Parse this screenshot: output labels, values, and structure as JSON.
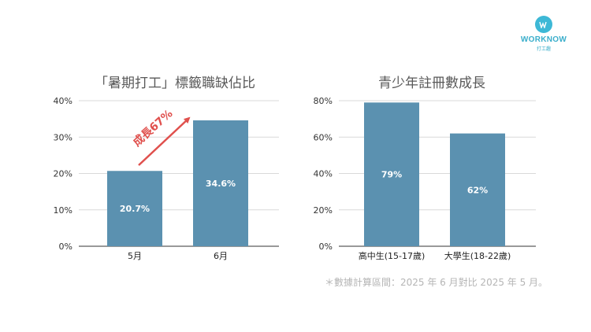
{
  "brand": {
    "name": "WORKNOW",
    "sub": "打工趣",
    "accent": "#3db8d6"
  },
  "chart_data": [
    {
      "type": "bar",
      "title": "「暑期打工」標籤職缺佔比",
      "categories": [
        "5月",
        "6月"
      ],
      "values": [
        20.7,
        34.6
      ],
      "value_labels": [
        "20.7%",
        "34.6%"
      ],
      "yticks": [
        "0%",
        "10%",
        "20%",
        "30%",
        "40%"
      ],
      "ylim": [
        0,
        40
      ],
      "bar_color": "#5b91b0",
      "annotation": {
        "text": "成長67%",
        "color": "#e0504d"
      },
      "grid": true
    },
    {
      "type": "bar",
      "title": "青少年註冊數成長",
      "categories": [
        "高中生(15-17歲)",
        "大學生(18-22歲)"
      ],
      "values": [
        79,
        62
      ],
      "value_labels": [
        "79%",
        "62%"
      ],
      "yticks": [
        "0%",
        "20%",
        "40%",
        "60%",
        "80%"
      ],
      "ylim": [
        0,
        80
      ],
      "bar_color": "#5b91b0",
      "grid": true
    }
  ],
  "footnote": "＊數據計算區間：2025 年 6 月對比 2025 年 5 月。"
}
